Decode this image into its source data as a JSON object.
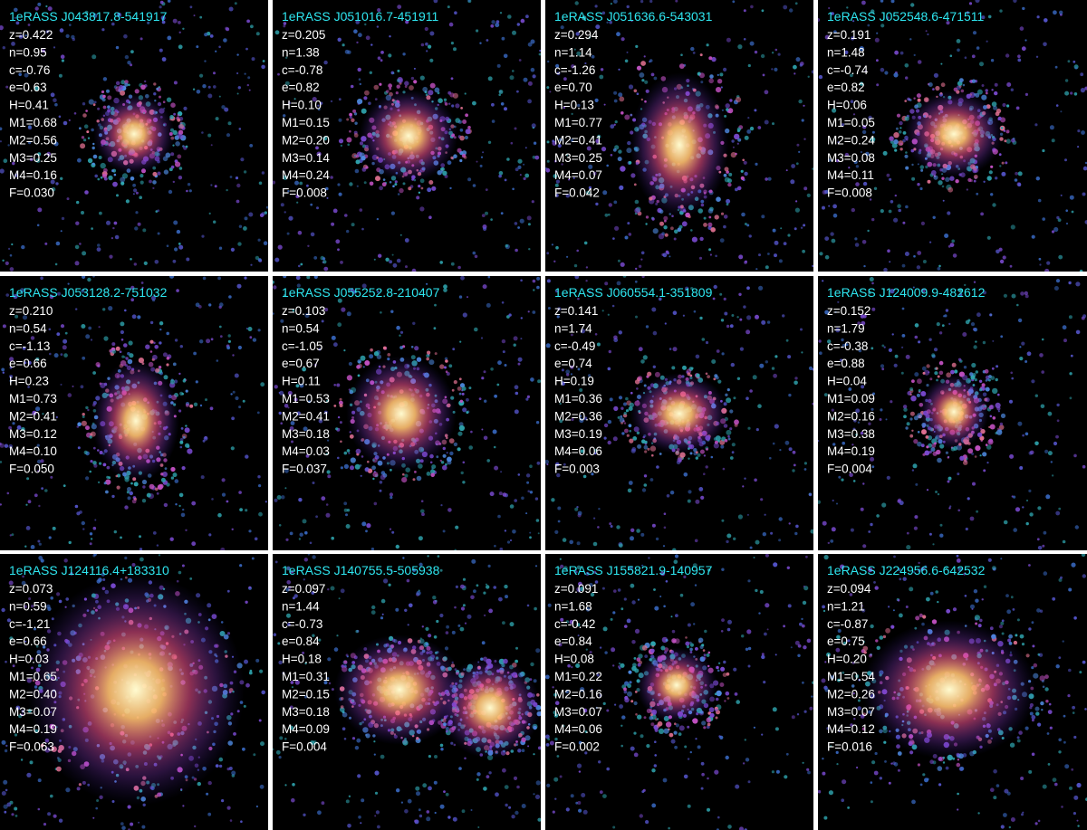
{
  "panels": [
    {
      "name": "1eRASS J043817.8-541917",
      "lines": [
        "z=0.422",
        "n=0.95",
        "c=-0.76",
        "e=0.63",
        "H=0.41",
        "M1=0.68",
        "M2=0.56",
        "M3=0.25",
        "M4=0.16",
        "F=0.030"
      ]
    },
    {
      "name": "1eRASS J051016.7-451911",
      "lines": [
        "z=0.205",
        "n=1.38",
        "c=-0.78",
        "e=0.82",
        "H=0.10",
        "M1=0.15",
        "M2=0.20",
        "M3=0.14",
        "M4=0.24",
        "F=0.008"
      ]
    },
    {
      "name": "1eRASS J051636.6-543031",
      "lines": [
        "z=0.294",
        "n=1.14",
        "c=-1.26",
        "e=0.70",
        "H=0.13",
        "M1=0.77",
        "M2=0.41",
        "M3=0.25",
        "M4=0.07",
        "F=0.042"
      ]
    },
    {
      "name": "1eRASS J052548.6-471511",
      "lines": [
        "z=0.191",
        "n=1.48",
        "c=-0.74",
        "e=0.82",
        "H=0.06",
        "M1=0.05",
        "M2=0.24",
        "M3=0.08",
        "M4=0.11",
        "F=0.008"
      ]
    },
    {
      "name": "1eRASS J053128.2-751032",
      "lines": [
        "z=0.210",
        "n=0.54",
        "c=-1.13",
        "e=0.66",
        "H=0.23",
        "M1=0.73",
        "M2=0.41",
        "M3=0.12",
        "M4=0.10",
        "F=0.050"
      ]
    },
    {
      "name": "1eRASS J055252.8-210407",
      "lines": [
        "z=0.103",
        "n=0.54",
        "c=-1.05",
        "e=0.67",
        "H=0.11",
        "M1=0.53",
        "M2=0.41",
        "M3=0.18",
        "M4=0.03",
        "F=0.037"
      ]
    },
    {
      "name": "1eRASS J060554.1-351809",
      "lines": [
        "z=0.141",
        "n=1.74",
        "c=-0.49",
        "e=0.74",
        "H=0.19",
        "M1=0.36",
        "M2=0.36",
        "M3=0.19",
        "M4=0.06",
        "F=0.003"
      ]
    },
    {
      "name": "1eRASS J124009.9-482612",
      "lines": [
        "z=0.152",
        "n=1.79",
        "c=-0.38",
        "e=0.88",
        "H=0.04",
        "M1=0.09",
        "M2=0.16",
        "M3=0.38",
        "M4=0.19",
        "F=0.004"
      ]
    },
    {
      "name": "1eRASS J124116.4+183310",
      "lines": [
        "z=0.073",
        "n=0.59",
        "c=-1.21",
        "e=0.66",
        "H=0.03",
        "M1=0.65",
        "M2=0.40",
        "M3=0.07",
        "M4=0.19",
        "F=0.063"
      ]
    },
    {
      "name": "1eRASS J140755.5-505938",
      "lines": [
        "z=0.097",
        "n=1.44",
        "c=-0.73",
        "e=0.84",
        "H=0.18",
        "M1=0.31",
        "M2=0.15",
        "M3=0.18",
        "M4=0.09",
        "F=0.004"
      ]
    },
    {
      "name": "1eRASS J155821.9-140957",
      "lines": [
        "z=0.091",
        "n=1.68",
        "c=-0.42",
        "e=0.84",
        "H=0.08",
        "M1=0.22",
        "M2=0.16",
        "M3=0.07",
        "M4=0.06",
        "F=0.002"
      ]
    },
    {
      "name": "1eRASS J224956.6-642532",
      "lines": [
        "z=0.094",
        "n=1.21",
        "c=-0.87",
        "e=0.75",
        "H=0.20",
        "M1=0.54",
        "M2=0.26",
        "M3=0.07",
        "M4=0.12",
        "F=0.016"
      ]
    }
  ]
}
